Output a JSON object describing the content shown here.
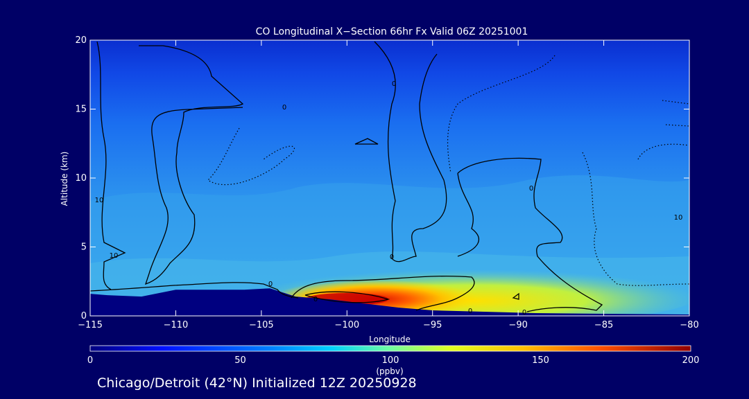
{
  "chart_data": {
    "type": "heatmap",
    "title": "CO Longitudinal X−Section 66hr  Fx Valid 06Z 20251001",
    "xlabel": "Longitude",
    "ylabel": "Altitude (km)",
    "xlim": [
      -115,
      -80
    ],
    "ylim": [
      0,
      20
    ],
    "x_ticks": [
      -115,
      -110,
      -105,
      -100,
      -95,
      -90,
      -85,
      -80
    ],
    "x_tick_labels": [
      "−115",
      "−110",
      "−105",
      "−100",
      "−95",
      "−90",
      "−85",
      "−80"
    ],
    "y_ticks": [
      0,
      5,
      10,
      15,
      20
    ],
    "y_tick_labels": [
      "0",
      "5",
      "10",
      "15",
      "20"
    ],
    "colorbar": {
      "label": "(ppbv)",
      "range": [
        0,
        200
      ],
      "ticks": [
        0,
        50,
        100,
        150,
        200
      ],
      "tick_labels": [
        "0",
        "50",
        "100",
        "150",
        "200"
      ]
    },
    "contour_labels": [
      "0",
      "0",
      "0",
      "0",
      "0",
      "0",
      "0",
      "0",
      "10",
      "10",
      "10"
    ],
    "terrain_km": [
      [
        -115,
        1.6
      ],
      [
        -114,
        1.5
      ],
      [
        -112,
        1.4
      ],
      [
        -110,
        1.9
      ],
      [
        -108,
        1.9
      ],
      [
        -106,
        1.9
      ],
      [
        -104.5,
        2.0
      ],
      [
        -103,
        1.4
      ],
      [
        -101,
        1.2
      ],
      [
        -99,
        0.9
      ],
      [
        -97,
        0.6
      ],
      [
        -95,
        0.4
      ],
      [
        -92,
        0.3
      ],
      [
        -89,
        0.2
      ],
      [
        -85,
        0.15
      ],
      [
        -80,
        0.1
      ]
    ]
  },
  "footer": "Chicago/Detroit (42°N) Initialized 12Z 20250928"
}
